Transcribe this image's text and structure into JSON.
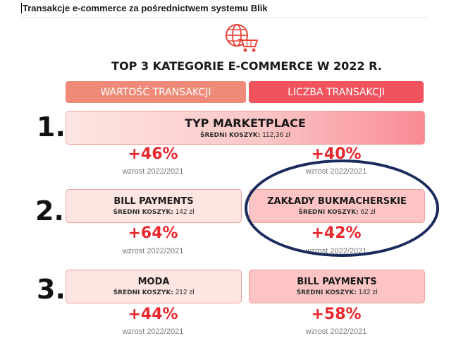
{
  "document": {
    "title": "Transakcje e-commerce za pośrednictwem systemu Blik"
  },
  "infographic": {
    "logo_icon": "globe-cart-icon",
    "title": "TOP 3 KATEGORIE E-COMMERCE W 2022 R.",
    "headers": {
      "left": "WARTOŚĆ TRANSAKCJI",
      "right": "LICZBA TRANSAKCJI"
    },
    "basket_label": "ŚREDNI KOSZYK:",
    "growth_label": "wzrost 2022/2021",
    "rows": [
      {
        "rank": "1.",
        "shared": {
          "name": "TYP MARKETPLACE",
          "basket": "112,36 zł"
        },
        "left": {
          "growth": "+46%"
        },
        "right": {
          "growth": "+40%"
        }
      },
      {
        "rank": "2.",
        "left": {
          "name": "BILL PAYMENTS",
          "basket": "142 zł",
          "growth": "+64%"
        },
        "right": {
          "name": "ZAKŁADY BUKMACHERSKIE",
          "basket": "62 zł",
          "growth": "+42%"
        }
      },
      {
        "rank": "3.",
        "left": {
          "name": "MODA",
          "basket": "212 zł",
          "growth": "+44%"
        },
        "right": {
          "name": "BILL PAYMENTS",
          "basket": "142 zł",
          "growth": "+58%"
        }
      }
    ],
    "colors": {
      "accent_red": "#e8272d",
      "header_left": "#f08a78",
      "header_right": "#f0535e",
      "highlight_ellipse": "#1b2a5c"
    }
  }
}
